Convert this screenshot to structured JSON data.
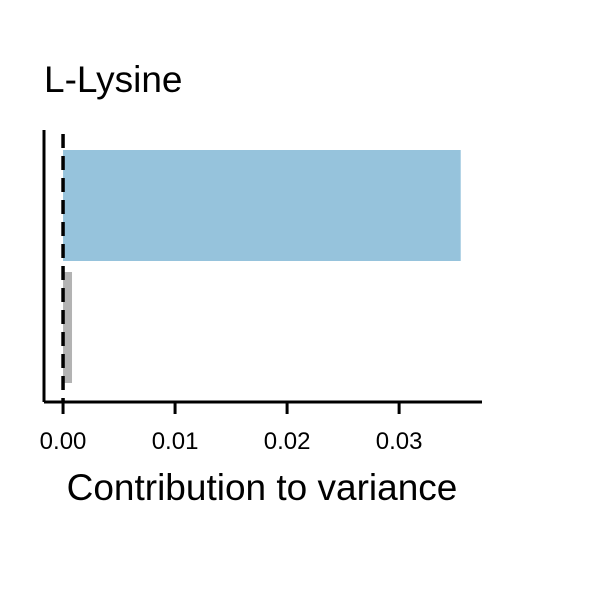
{
  "chart_data": {
    "type": "bar",
    "orientation": "horizontal",
    "title": "L-Lysine",
    "xlabel": "Contribution to variance",
    "ylabel": "",
    "categories": [
      "",
      ""
    ],
    "values": [
      0.0355,
      0.0008
    ],
    "bar_colors": [
      "#96c3dc",
      "#b3b3b3"
    ],
    "xlim": [
      -0.0017,
      0.0374
    ],
    "xticks": [
      0.0,
      0.01,
      0.02,
      0.03
    ],
    "xtick_labels": [
      "0.00",
      "0.01",
      "0.02",
      "0.03"
    ],
    "reference_line": {
      "x": 0.0,
      "style": "dashed",
      "color": "#000000"
    },
    "grid": false,
    "legend": "none"
  }
}
